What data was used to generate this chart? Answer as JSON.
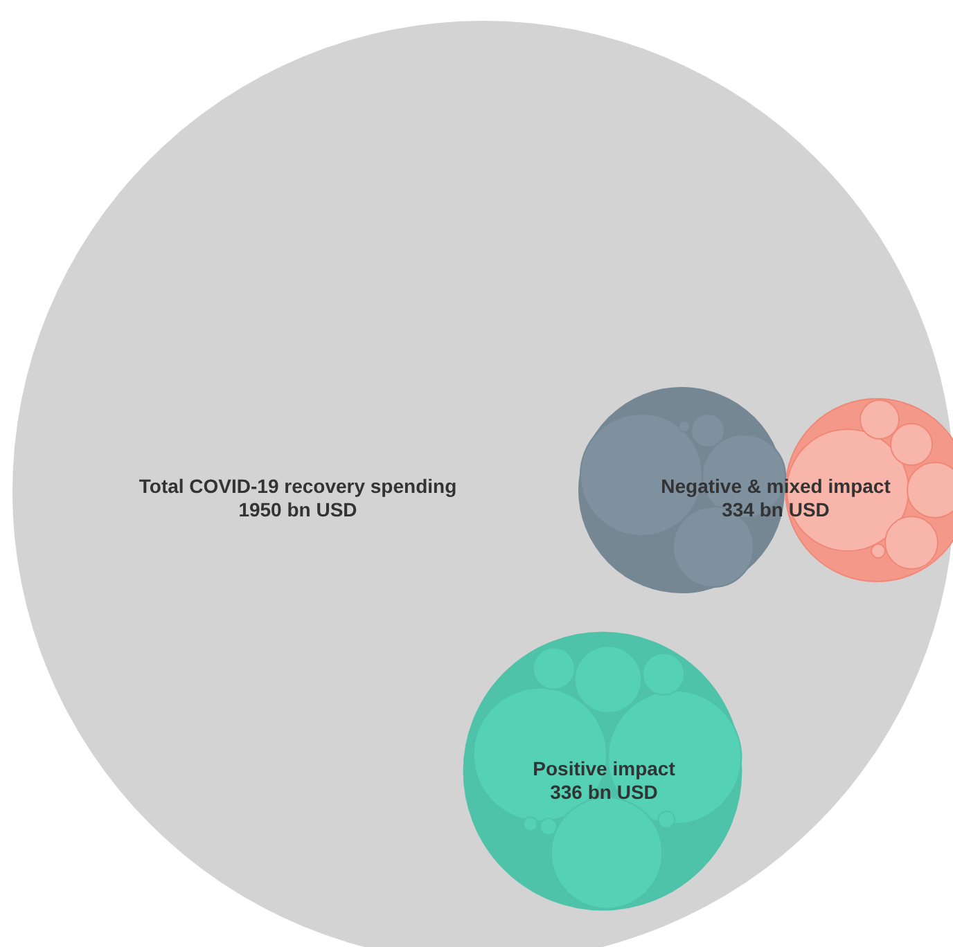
{
  "chart_data": {
    "type": "other",
    "categories": [
      "Total COVID-19 recovery spending",
      "Negative & mixed impact",
      "Positive impact"
    ],
    "values": [
      1950,
      334,
      336
    ],
    "value_labels": [
      "1950 bn USD",
      "334 bn USD",
      "336 bn USD"
    ],
    "colors": [
      "#d3d3d3",
      "#7f919f",
      "#55d2b6"
    ],
    "data_labels": true
  }
}
